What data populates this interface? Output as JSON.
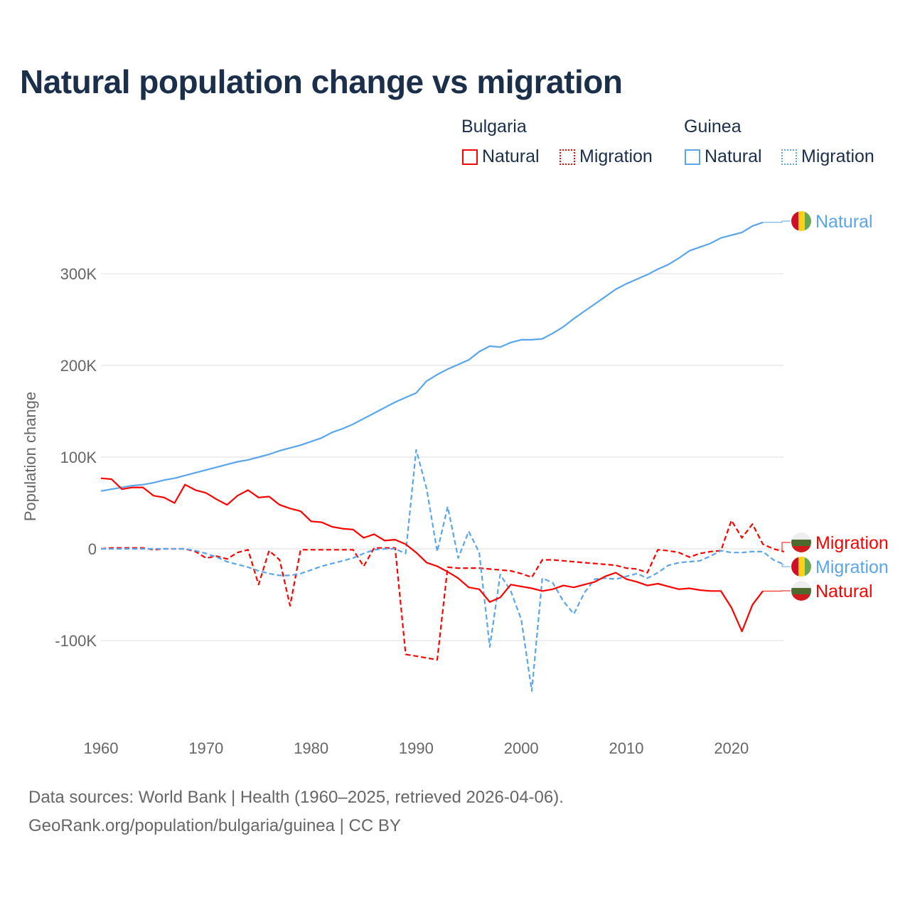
{
  "title": "Natural population change vs migration",
  "legend": {
    "groups": [
      {
        "name": "Bulgaria",
        "color": "#ff0000",
        "items": [
          "Natural",
          "Migration"
        ]
      },
      {
        "name": "Guinea",
        "color": "#5aa5ec",
        "items": [
          "Natural",
          "Migration"
        ]
      }
    ]
  },
  "footer": {
    "line1": "Data sources: World Bank | Health (1960–2025, retrieved 2026-04-06).",
    "line2": "GeoRank.org/population/bulgaria/guinea | CC BY"
  },
  "chart_data": {
    "type": "line",
    "title": "Natural population change vs migration",
    "xlabel": "",
    "ylabel": "Population change",
    "xlim": [
      1960,
      2025
    ],
    "ylim": [
      -170000,
      360000
    ],
    "x_ticks": [
      1960,
      1970,
      1980,
      1990,
      2000,
      2010,
      2020
    ],
    "x_tick_labels": [
      "1960",
      "1970",
      "1980",
      "1990",
      "2000",
      "2010",
      "2020"
    ],
    "y_ticks": [
      -100000,
      0,
      100000,
      200000,
      300000
    ],
    "y_tick_labels": [
      "-100K",
      "0",
      "100K",
      "200K",
      "300K"
    ],
    "grid": true,
    "legend_position": "top-right",
    "start_year": 1960,
    "series": [
      {
        "name": "Guinea Natural",
        "label": "Natural",
        "country": "Guinea",
        "color": "#5aa5ec",
        "dash": false,
        "values": [
          63,
          65,
          67,
          69,
          70,
          72,
          75,
          77,
          80,
          83,
          86,
          89,
          92,
          95,
          97,
          100,
          103,
          107,
          110,
          113,
          117,
          121,
          127,
          131,
          136,
          142,
          148,
          154,
          160,
          165,
          170,
          183,
          190,
          196,
          201,
          206,
          215,
          221,
          220,
          225,
          228,
          228,
          229,
          235,
          242,
          251,
          259,
          267,
          275,
          283,
          289,
          294,
          299,
          305,
          310,
          317,
          325,
          329,
          333,
          339,
          342,
          345,
          352,
          356
        ]
      },
      {
        "name": "Bulgaria Migration",
        "label": "Migration",
        "country": "Bulgaria",
        "color": "#ff0000",
        "dash": true,
        "values": [
          0,
          1,
          1,
          1,
          1,
          -1,
          0,
          0,
          0,
          -3,
          -10,
          -8,
          -11,
          -4,
          -1,
          -39,
          -2,
          -12,
          -62,
          -1,
          -1,
          -1,
          -1,
          -1,
          -1,
          -19,
          1,
          1,
          1,
          -115,
          -117,
          -119,
          -121,
          -20,
          -21,
          -21,
          -21,
          -22,
          -23,
          -24,
          -27,
          -31,
          -12,
          -12,
          -13,
          -14,
          -15,
          -16,
          -17,
          -18,
          -21,
          -22,
          -26,
          -1,
          -2,
          -4,
          -9,
          -5,
          -3,
          -2,
          31,
          12,
          27,
          5,
          0,
          -3
        ]
      },
      {
        "name": "Guinea Migration",
        "label": "Migration",
        "country": "Guinea",
        "color": "#5aa5ec",
        "dash": true,
        "values": [
          0,
          0,
          0,
          0,
          0,
          0,
          0,
          0,
          0,
          -2,
          -5,
          -9,
          -14,
          -17,
          -20,
          -24,
          -27,
          -29,
          -29,
          -27,
          -23,
          -19,
          -16,
          -13,
          -10,
          -5,
          -1,
          0,
          0,
          -5,
          108,
          65,
          -3,
          46,
          -10,
          19,
          -4,
          -107,
          -28,
          -46,
          -77,
          -155,
          -32,
          -37,
          -57,
          -71,
          -48,
          -33,
          -32,
          -33,
          -30,
          -27,
          -32,
          -26,
          -18,
          -15,
          -14,
          -13,
          -8,
          -2,
          -4,
          -4,
          -3,
          -3,
          -12,
          -17
        ]
      },
      {
        "name": "Bulgaria Natural",
        "label": "Natural",
        "country": "Bulgaria",
        "color": "#ff0000",
        "dash": false,
        "values": [
          77,
          76,
          65,
          67,
          67,
          58,
          56,
          50,
          70,
          64,
          61,
          54,
          48,
          58,
          64,
          56,
          57,
          48,
          44,
          41,
          30,
          29,
          24,
          22,
          21,
          12,
          16,
          9,
          10,
          5,
          -4,
          -15,
          -19,
          -25,
          -32,
          -42,
          -44,
          -58,
          -53,
          -39,
          -41,
          -43,
          -46,
          -44,
          -40,
          -42,
          -39,
          -36,
          -30,
          -26,
          -33,
          -36,
          -40,
          -38,
          -41,
          -44,
          -43,
          -45,
          -46,
          -46,
          -64,
          -90,
          -61,
          -46
        ]
      }
    ],
    "value_unit": "thousands"
  }
}
